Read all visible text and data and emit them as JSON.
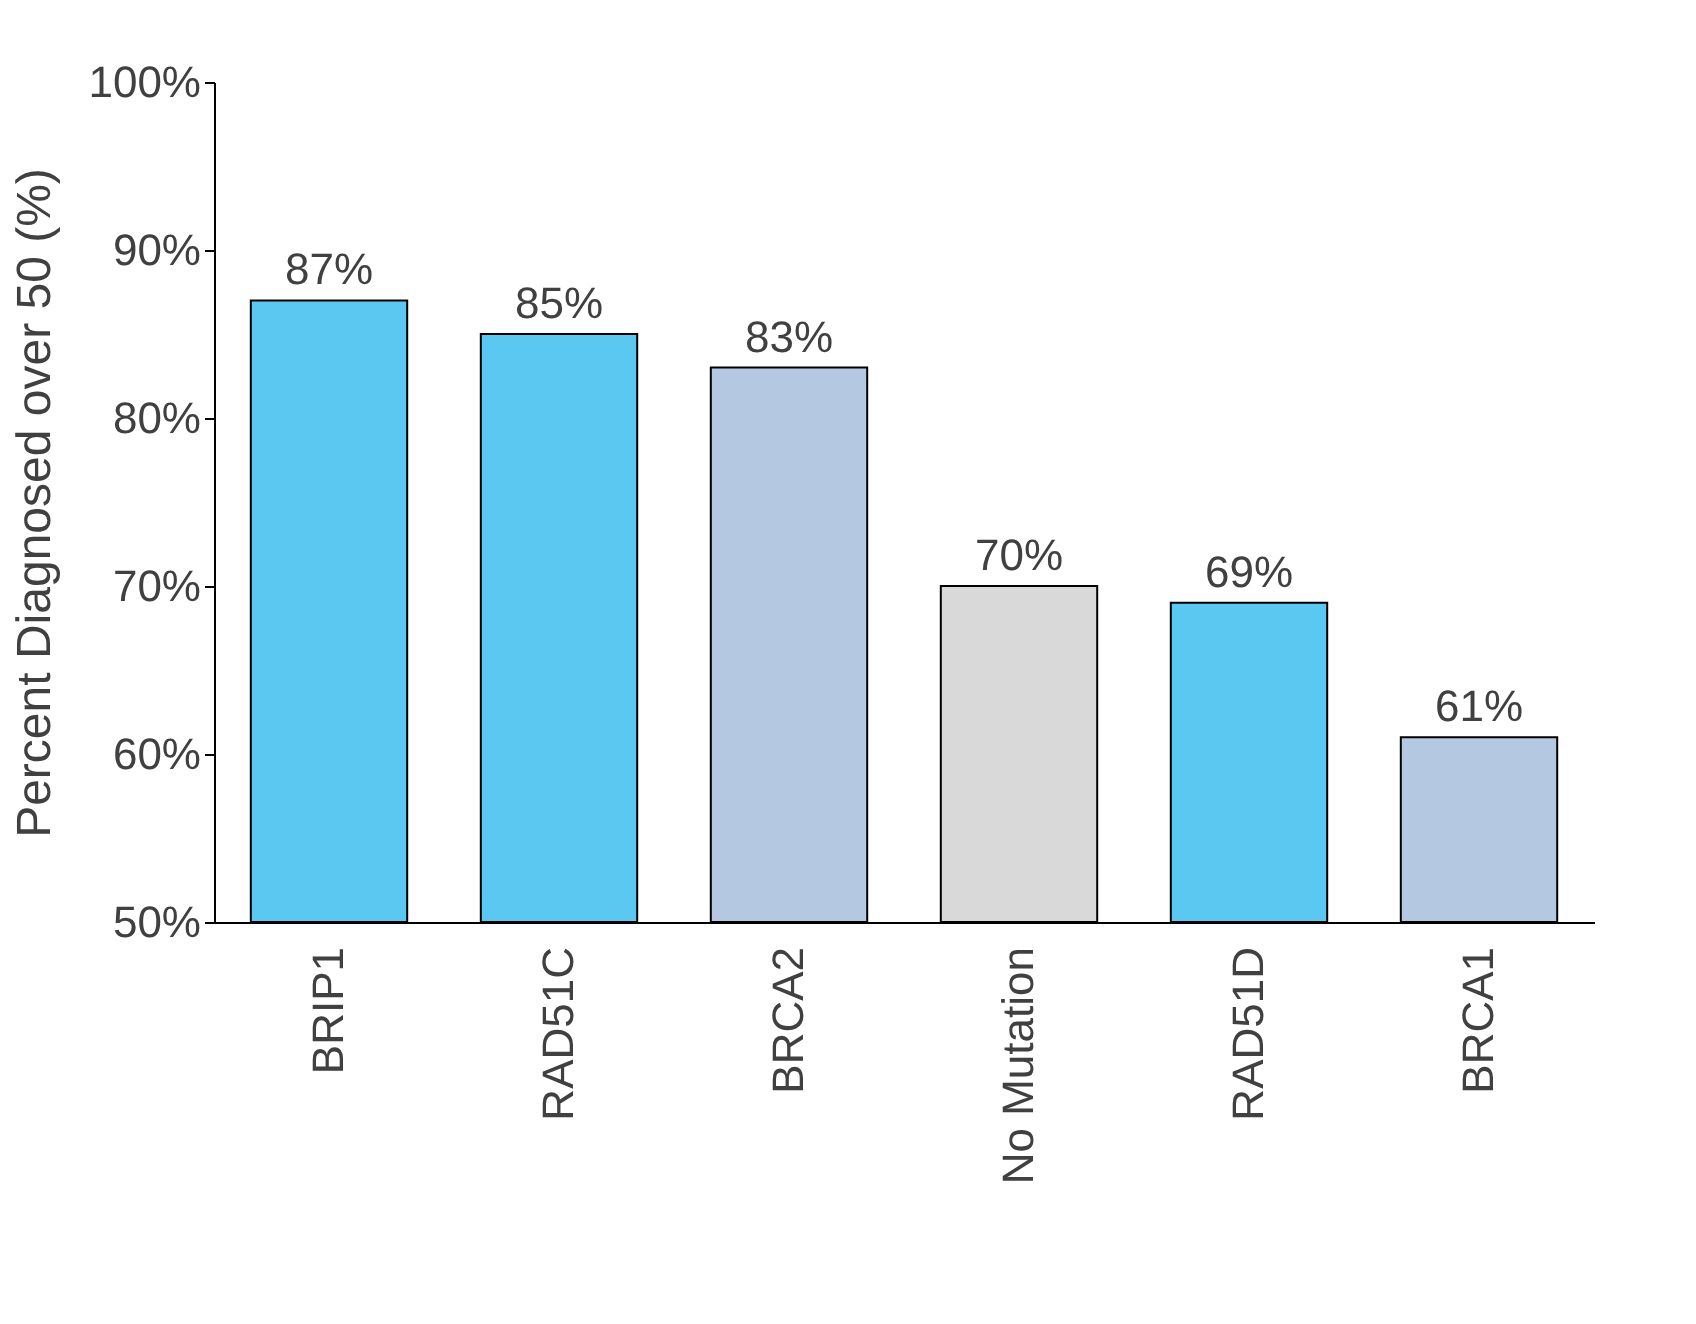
{
  "chart_data": {
    "type": "bar",
    "ylabel": "Percent Diagnosed over 50 (%)",
    "categories": [
      "BRIP1",
      "RAD51C",
      "BRCA2",
      "No Mutation",
      "RAD51D",
      "BRCA1"
    ],
    "values": [
      87,
      85,
      83,
      70,
      69,
      61
    ],
    "colors": [
      "#5bc8f2",
      "#5bc8f2",
      "#b4c8e2",
      "#d9d9d9",
      "#5bc8f2",
      "#b4c8e2"
    ],
    "value_labels": [
      "87%",
      "85%",
      "83%",
      "70%",
      "69%",
      "61%"
    ],
    "ylim": [
      50,
      100
    ],
    "yticks": [
      {
        "value": 50,
        "label": "50%"
      },
      {
        "value": 60,
        "label": "60%"
      },
      {
        "value": 70,
        "label": "70%"
      },
      {
        "value": 80,
        "label": "80%"
      },
      {
        "value": 90,
        "label": "90%"
      },
      {
        "value": 100,
        "label": "100%"
      }
    ],
    "grid": false
  }
}
